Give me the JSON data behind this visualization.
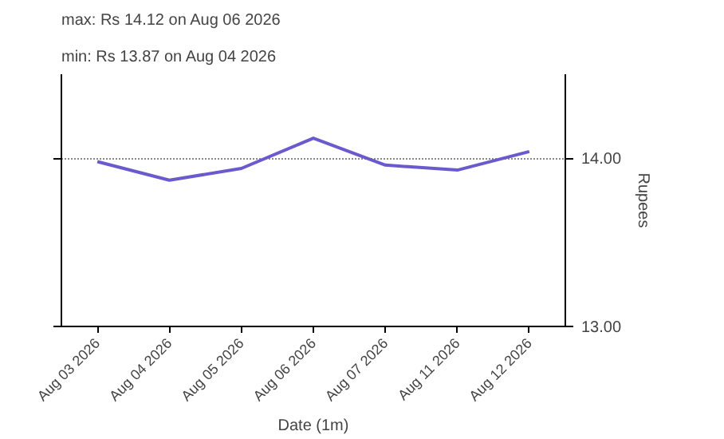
{
  "chart_data": {
    "type": "line",
    "xlabel": "Date (1m)",
    "ylabel": "Rupees",
    "annotations": [
      "max: Rs 14.12 on Aug 06 2026",
      "min: Rs 13.87 on Aug 04 2026"
    ],
    "categories": [
      "Aug 03 2026",
      "Aug 04 2026",
      "Aug 05 2026",
      "Aug 06 2026",
      "Aug 07 2026",
      "Aug 11 2026",
      "Aug 12 2026"
    ],
    "series": [
      {
        "color": "#6a5acd",
        "values": [
          13.98,
          13.87,
          13.94,
          14.12,
          13.96,
          13.93,
          14.04
        ]
      }
    ],
    "ylim": [
      13,
      14.5
    ],
    "yticks": [
      {
        "value": 13,
        "label": "13.00"
      },
      {
        "value": 14,
        "label": "14.00"
      }
    ],
    "grid": "y"
  }
}
